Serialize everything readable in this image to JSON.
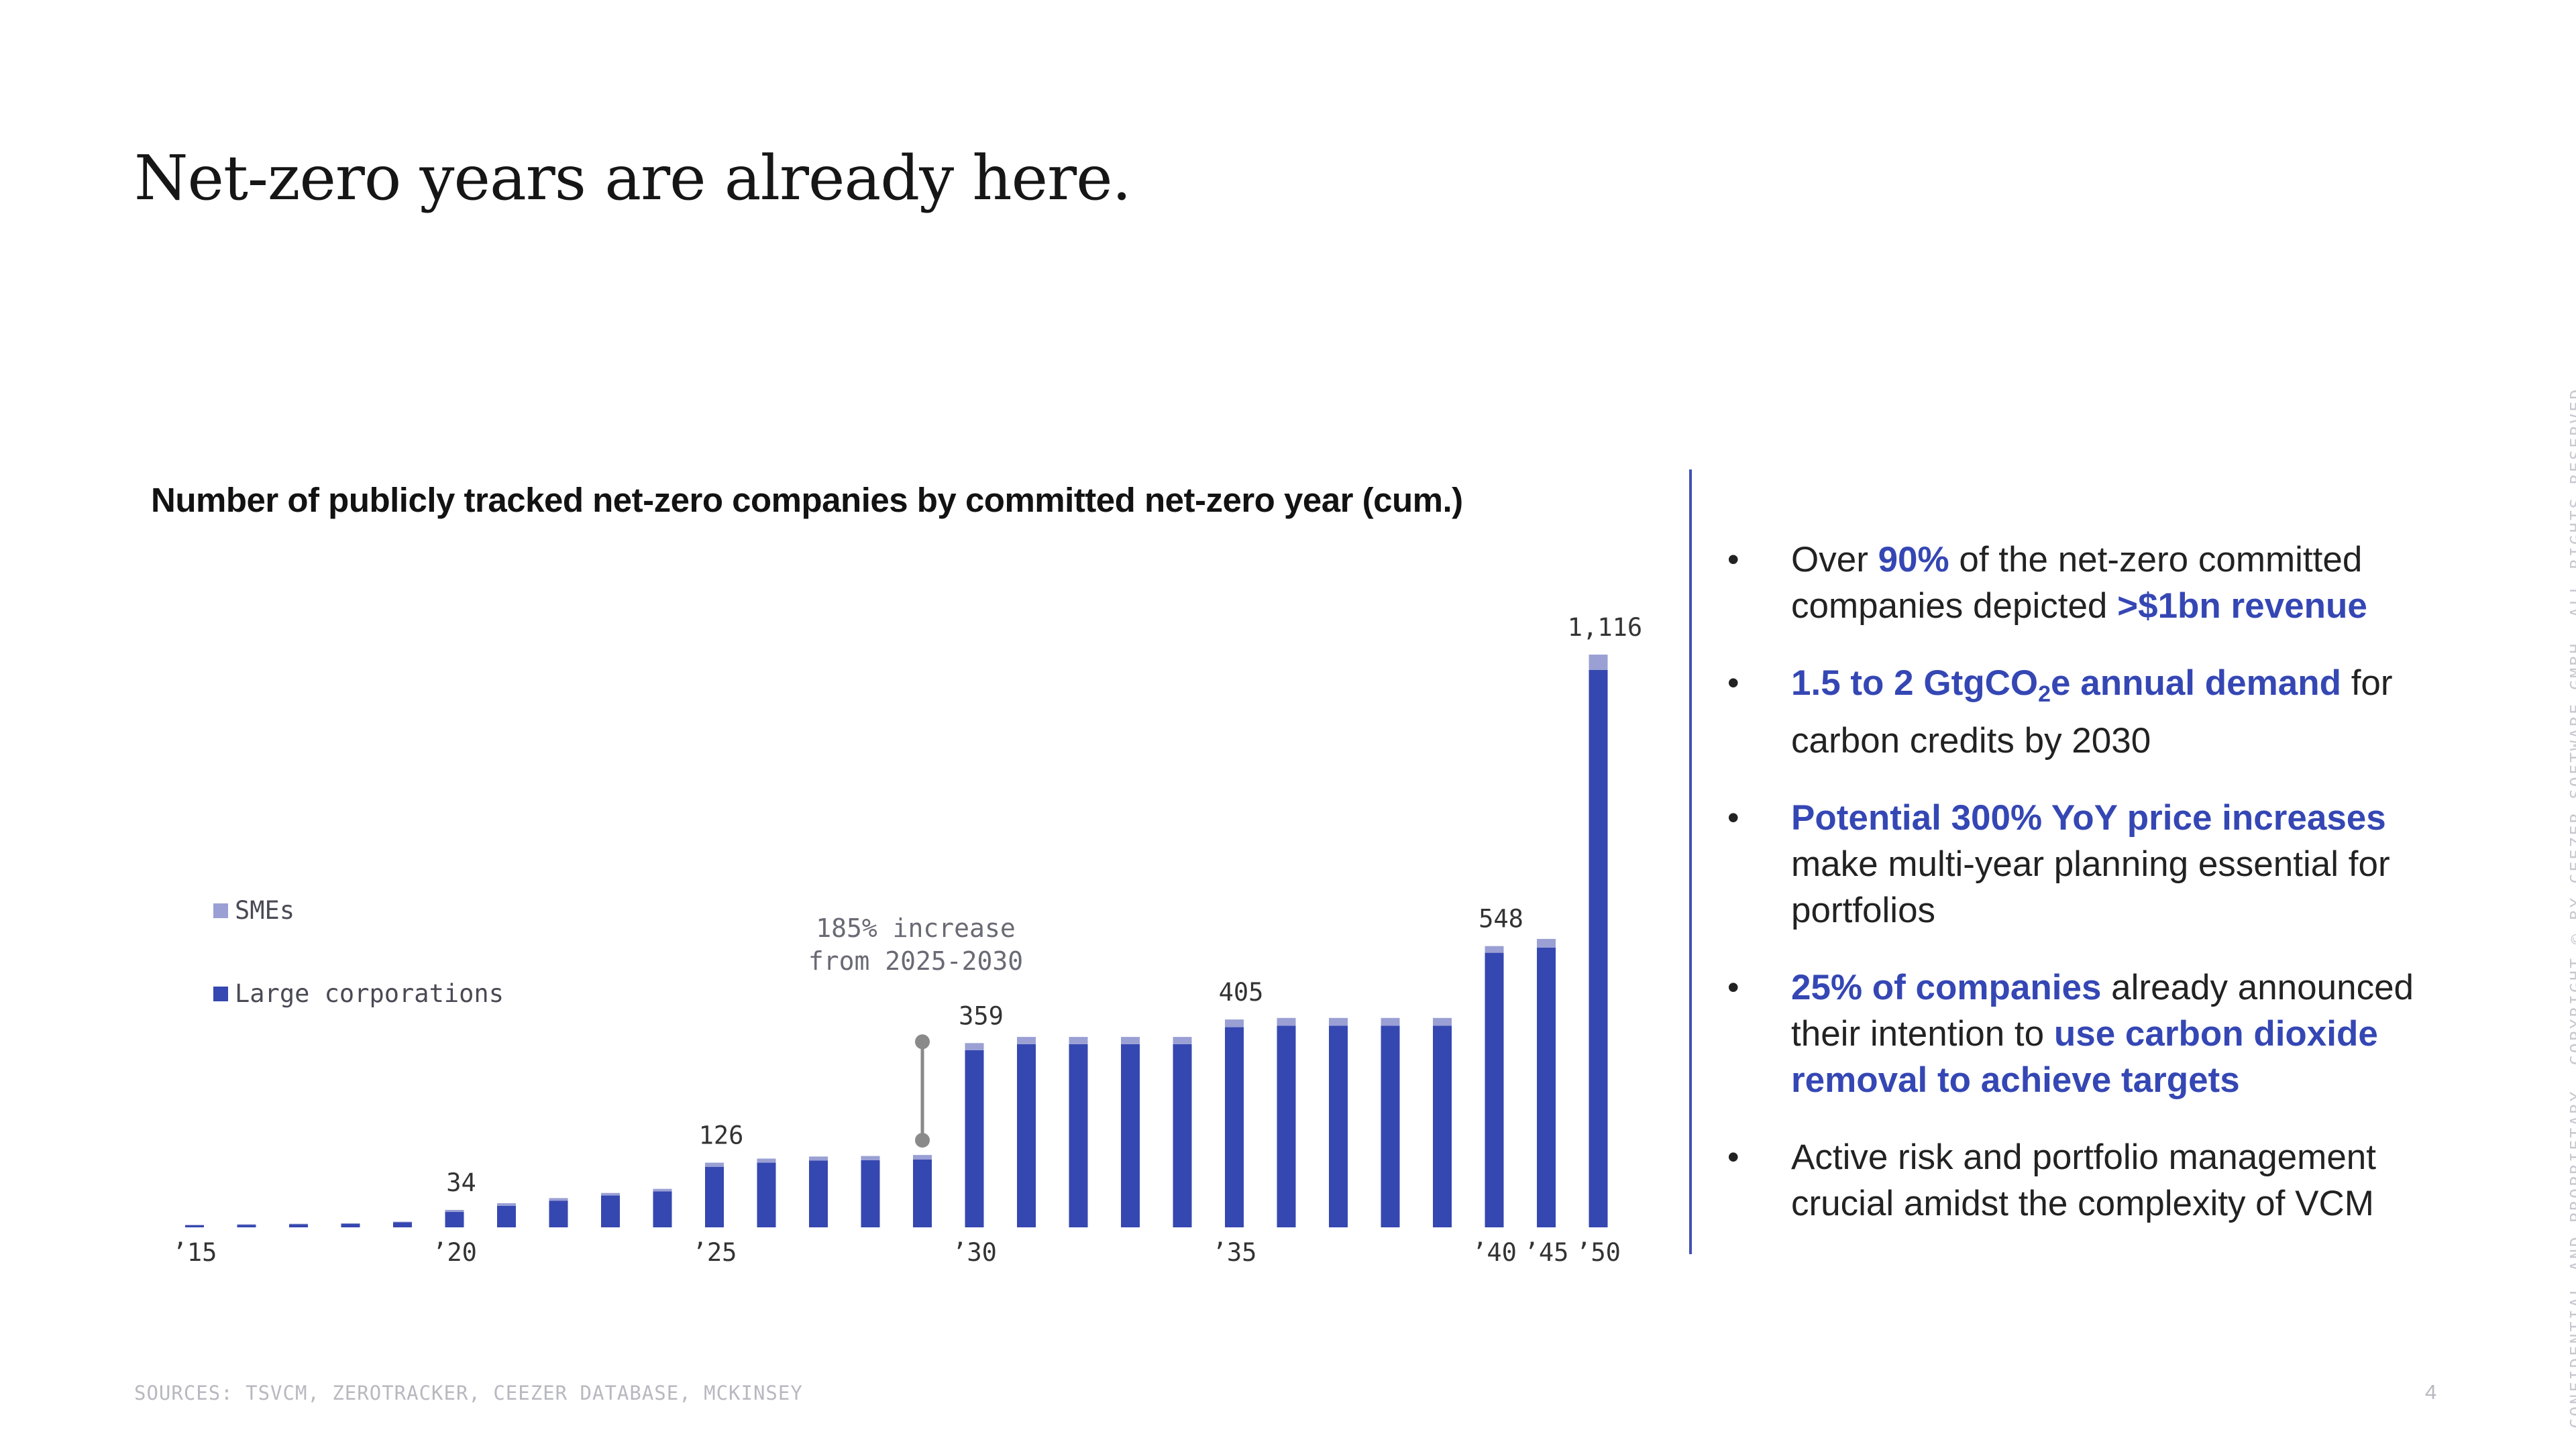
{
  "page": {
    "title": "Net-zero years are already here.",
    "sources": "SOURCES: TSVCM, ZEROTRACKER, CEEZER DATABASE, MCKINSEY",
    "page_number": "4",
    "side_notice": "CONFIDENTIAL AND PROPRIETARY. COPYRIGHT © BY CEEZER SOFTWARE GMBH. ALL RIGHTS RESERVED"
  },
  "colors": {
    "large": "#3547b0",
    "sme": "#9aa0d4",
    "accent": "#3547b4"
  },
  "chart_data": {
    "type": "bar",
    "stacked": true,
    "title": "Number of publicly tracked net-zero companies by committed net-zero year (cum.)",
    "categories": [
      "2015",
      "2016",
      "2017",
      "2018",
      "2019",
      "2020",
      "2021",
      "2022",
      "2023",
      "2024",
      "2025",
      "2026",
      "2027",
      "2028",
      "2029",
      "2030",
      "2031",
      "2032",
      "2033",
      "2034",
      "2035",
      "2036",
      "2037",
      "2038",
      "2039",
      "2040",
      "2045",
      "2050"
    ],
    "x_tick_labels": [
      {
        "index": 0,
        "label": "’15"
      },
      {
        "index": 5,
        "label": "’20"
      },
      {
        "index": 10,
        "label": "’25"
      },
      {
        "index": 15,
        "label": "’30"
      },
      {
        "index": 20,
        "label": "’35"
      },
      {
        "index": 25,
        "label": "’40"
      },
      {
        "index": 26,
        "label": "’45"
      },
      {
        "index": 27,
        "label": "’50"
      }
    ],
    "series": [
      {
        "name": "Large corporations",
        "values": [
          4,
          5,
          6,
          7,
          10,
          30,
          42,
          52,
          62,
          70,
          118,
          126,
          130,
          131,
          132,
          345,
          357,
          357,
          357,
          357,
          390,
          393,
          393,
          393,
          393,
          535,
          545,
          1086
        ]
      },
      {
        "name": "SMEs",
        "values": [
          1,
          1,
          1,
          1,
          1,
          4,
          5,
          5,
          5,
          5,
          8,
          8,
          8,
          8,
          9,
          14,
          14,
          14,
          14,
          14,
          15,
          15,
          15,
          15,
          15,
          13,
          17,
          30
        ]
      }
    ],
    "data_labels": [
      {
        "index": 5,
        "label": "34"
      },
      {
        "index": 10,
        "label": "126"
      },
      {
        "index": 15,
        "label": "359"
      },
      {
        "index": 20,
        "label": "405"
      },
      {
        "index": 25,
        "label": "548"
      },
      {
        "index": 27,
        "label": "1,116"
      }
    ],
    "annotation": {
      "line1": "185% increase",
      "line2": "from 2025-2030",
      "from_index": 14
    },
    "legend_position": "left-middle",
    "ylim": [
      0,
      1150
    ],
    "grid": false
  },
  "legend": {
    "smes": "SMEs",
    "large": "Large corporations"
  },
  "bullets": [
    {
      "segments": [
        {
          "text": "Over ",
          "hl": false
        },
        {
          "text": "90%",
          "hl": true
        },
        {
          "text": " of the net-zero committed companies depicted ",
          "hl": false
        },
        {
          "text": ">$1bn revenue",
          "hl": true
        }
      ]
    },
    {
      "segments": [
        {
          "text": "1.5 to 2 GtgCO",
          "hl": true
        },
        {
          "text": "2",
          "hl": true,
          "sub": true
        },
        {
          "text": "e annual demand",
          "hl": true
        },
        {
          "text": " for carbon credits by 2030",
          "hl": false
        }
      ]
    },
    {
      "segments": [
        {
          "text": "Potential 300% YoY price increases",
          "hl": true
        },
        {
          "text": " make multi-year planning essential for portfolios",
          "hl": false
        }
      ]
    },
    {
      "segments": [
        {
          "text": "25% of companies",
          "hl": true
        },
        {
          "text": " already announced their intention to ",
          "hl": false
        },
        {
          "text": "use carbon dioxide removal to achieve targets",
          "hl": true
        }
      ]
    },
    {
      "segments": [
        {
          "text": "Active risk and portfolio management crucial amidst the complexity of VCM",
          "hl": false
        }
      ]
    }
  ]
}
